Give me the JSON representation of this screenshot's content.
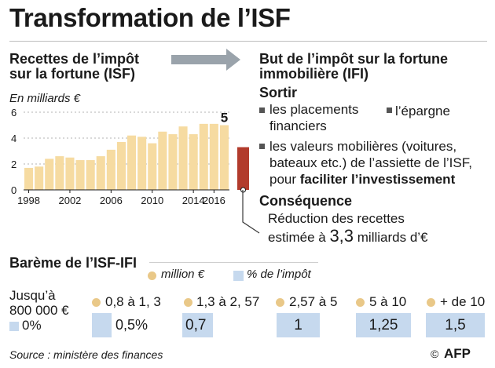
{
  "title": "Transformation de l’ISF",
  "left_section": {
    "title_line1": "Recettes de l’impôt",
    "title_line2": "sur la fortune (ISF)",
    "unit": "En milliards €"
  },
  "right_section": {
    "title_line1": "But de l’impôt sur la fortune",
    "title_line2": "immobilière (IFI)",
    "sortir_heading": "Sortir",
    "item1_line1": "les placements",
    "item1_line2": "financiers",
    "item2": "l’épargne",
    "item3_line1": "les valeurs mobilières (voitures,",
    "item3_line2": "bateaux etc.) de l’assiette de l’ISF,",
    "item3_line3_prefix": "pour ",
    "item3_line3_bold": "faciliter l’investissement",
    "consequence_heading": "Conséquence",
    "consequence_line1": "Réduction des recettes",
    "consequence_line2_prefix": "estimée à ",
    "consequence_value": "3,3",
    "consequence_line2_suffix": " milliards d’€"
  },
  "bareme": {
    "title": "Barème de l’ISF-IFI",
    "legend_million": "million €",
    "legend_pct": "% de l’impôt",
    "first_line1": "Jusqu’à",
    "first_line2": "800 000  €",
    "first_pct": "0%",
    "brackets": [
      {
        "range": "0,8 à 1, 3",
        "pct": "0,5%"
      },
      {
        "range": "1,3 à 2, 57",
        "pct": "0,7"
      },
      {
        "range": "2,57 à 5",
        "pct": "1"
      },
      {
        "range": "5 à 10",
        "pct": "1,25"
      },
      {
        "range": "+ de 10",
        "pct": "1,5"
      }
    ]
  },
  "source": "Source : ministère des finances",
  "credit": "AFP",
  "colors": {
    "bar": "#f6dba1",
    "bar_ifi": "#b23b2c",
    "dot_million": "#e9c888",
    "box_pct": "#c6d9ee",
    "grid": "#b3b3b3",
    "arrow": "#9aa3ab"
  },
  "chart_data": {
    "type": "bar",
    "title": "Recettes de l’impôt sur la fortune (ISF)",
    "ylabel": "En milliards €",
    "xlabel": "",
    "x": [
      1998,
      1999,
      2000,
      2001,
      2002,
      2003,
      2004,
      2005,
      2006,
      2007,
      2008,
      2009,
      2010,
      2011,
      2012,
      2013,
      2014,
      2015,
      2016,
      2017
    ],
    "values": [
      1.7,
      1.8,
      2.4,
      2.6,
      2.5,
      2.3,
      2.3,
      2.6,
      3.1,
      3.7,
      4.2,
      4.1,
      3.6,
      4.5,
      4.3,
      4.9,
      4.3,
      5.1,
      5.1,
      5.0
    ],
    "ylim": [
      0,
      6
    ],
    "yticks": [
      "0",
      "2",
      "4",
      "6"
    ],
    "xticks": [
      "1998",
      "2002",
      "2006",
      "2010",
      "2014",
      "2016"
    ],
    "annotation": "5",
    "grid": true,
    "ifi_value": 3.3
  }
}
